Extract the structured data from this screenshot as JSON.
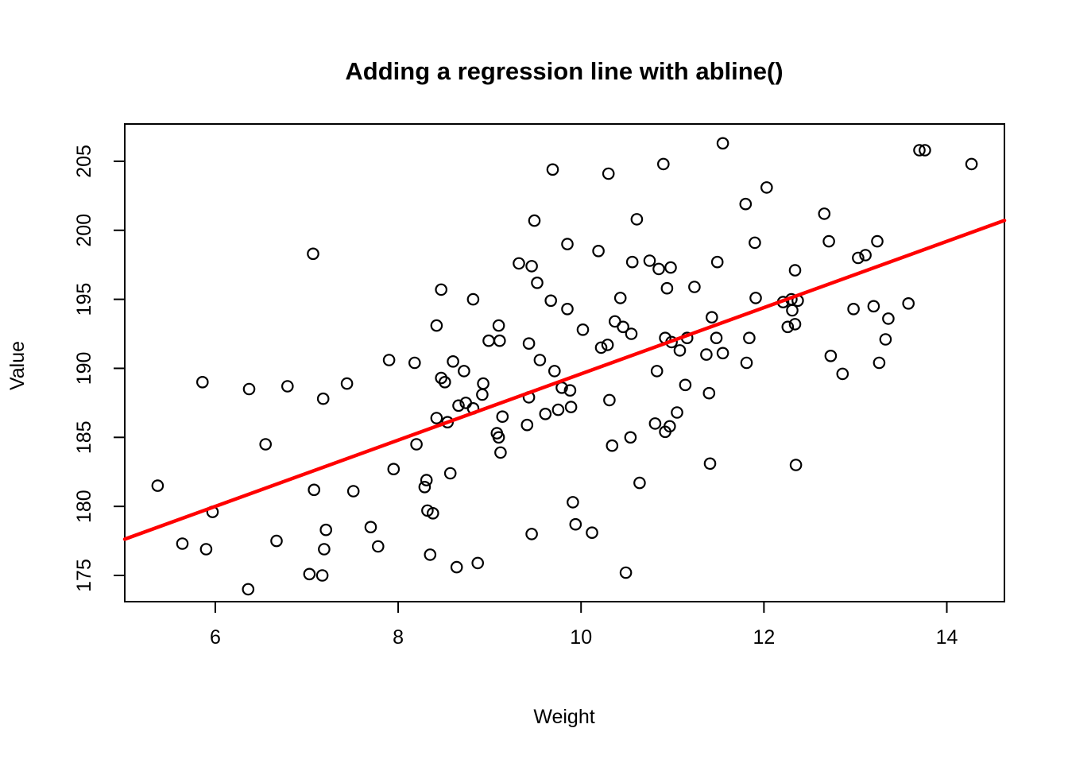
{
  "chart_data": {
    "type": "scatter",
    "title": "Adding a regression line with abline()",
    "xlabel": "Weight",
    "ylabel": "Value",
    "x_ticks": [
      6,
      8,
      10,
      12,
      14
    ],
    "y_ticks": [
      175,
      180,
      185,
      190,
      195,
      200,
      205
    ],
    "xlim": [
      5.01,
      14.63
    ],
    "ylim": [
      173.1,
      207.7
    ],
    "grid": "off",
    "legend": "none",
    "point_color": "#000000",
    "background": "#ffffff",
    "regression_line": {
      "intercept": 165.6,
      "slope": 2.4,
      "color": "#ff0000"
    },
    "points": [
      [
        7.07,
        198.3
      ],
      [
        7.9,
        190.6
      ],
      [
        8.18,
        190.4
      ],
      [
        9.69,
        204.4
      ],
      [
        10.3,
        204.1
      ],
      [
        10.9,
        204.8
      ],
      [
        9.49,
        200.7
      ],
      [
        10.61,
        200.8
      ],
      [
        9.85,
        199.0
      ],
      [
        10.19,
        198.5
      ],
      [
        10.56,
        197.7
      ],
      [
        10.75,
        197.8
      ],
      [
        10.85,
        197.2
      ],
      [
        10.98,
        197.3
      ],
      [
        9.32,
        197.6
      ],
      [
        9.46,
        197.4
      ],
      [
        9.52,
        196.2
      ],
      [
        8.47,
        195.7
      ],
      [
        8.82,
        195.0
      ],
      [
        10.94,
        195.8
      ],
      [
        11.24,
        195.9
      ],
      [
        9.67,
        194.9
      ],
      [
        9.85,
        194.3
      ],
      [
        10.43,
        195.1
      ],
      [
        8.42,
        193.1
      ],
      [
        9.1,
        193.1
      ],
      [
        8.99,
        192.0
      ],
      [
        9.11,
        192.0
      ],
      [
        9.43,
        191.8
      ],
      [
        10.02,
        192.8
      ],
      [
        10.22,
        191.5
      ],
      [
        10.29,
        191.7
      ],
      [
        10.37,
        193.4
      ],
      [
        10.46,
        193.0
      ],
      [
        10.55,
        192.5
      ],
      [
        10.92,
        192.2
      ],
      [
        10.99,
        191.9
      ],
      [
        11.16,
        192.2
      ],
      [
        11.08,
        191.3
      ],
      [
        11.37,
        191.0
      ],
      [
        11.43,
        193.7
      ],
      [
        11.55,
        206.3
      ],
      [
        13.7,
        205.8
      ],
      [
        13.76,
        205.8
      ],
      [
        14.27,
        204.8
      ],
      [
        12.03,
        203.1
      ],
      [
        11.8,
        201.9
      ],
      [
        12.66,
        201.2
      ],
      [
        11.9,
        199.1
      ],
      [
        12.71,
        199.2
      ],
      [
        13.24,
        199.2
      ],
      [
        13.03,
        198.0
      ],
      [
        13.11,
        198.2
      ],
      [
        11.49,
        197.7
      ],
      [
        12.34,
        197.1
      ],
      [
        11.91,
        195.1
      ],
      [
        12.21,
        194.8
      ],
      [
        12.3,
        195.0
      ],
      [
        12.37,
        194.9
      ],
      [
        12.31,
        194.2
      ],
      [
        12.26,
        193.0
      ],
      [
        12.34,
        193.2
      ],
      [
        12.98,
        194.3
      ],
      [
        13.2,
        194.5
      ],
      [
        13.36,
        193.6
      ],
      [
        13.58,
        194.7
      ],
      [
        13.33,
        192.1
      ],
      [
        11.48,
        192.2
      ],
      [
        11.84,
        192.2
      ],
      [
        12.73,
        190.9
      ],
      [
        11.55,
        191.1
      ],
      [
        13.26,
        190.4
      ],
      [
        11.81,
        190.4
      ],
      [
        5.86,
        189.0
      ],
      [
        6.37,
        188.5
      ],
      [
        6.79,
        188.7
      ],
      [
        7.18,
        187.8
      ],
      [
        7.44,
        188.9
      ],
      [
        6.55,
        184.5
      ],
      [
        5.37,
        181.5
      ],
      [
        5.97,
        179.6
      ],
      [
        5.64,
        177.3
      ],
      [
        5.9,
        176.9
      ],
      [
        6.67,
        177.5
      ],
      [
        7.08,
        181.2
      ],
      [
        7.51,
        181.1
      ],
      [
        7.19,
        176.9
      ],
      [
        7.03,
        175.1
      ],
      [
        7.17,
        175.0
      ],
      [
        6.36,
        174.0
      ],
      [
        7.7,
        178.5
      ],
      [
        7.78,
        177.1
      ],
      [
        7.95,
        182.7
      ],
      [
        8.2,
        184.5
      ],
      [
        7.21,
        178.3
      ],
      [
        8.47,
        189.3
      ],
      [
        8.51,
        189.0
      ],
      [
        8.72,
        189.8
      ],
      [
        8.93,
        188.9
      ],
      [
        8.92,
        188.1
      ],
      [
        8.66,
        187.3
      ],
      [
        8.74,
        187.5
      ],
      [
        8.82,
        187.1
      ],
      [
        8.42,
        186.4
      ],
      [
        8.54,
        186.1
      ],
      [
        9.14,
        186.5
      ],
      [
        9.08,
        185.3
      ],
      [
        9.1,
        185.0
      ],
      [
        9.12,
        183.9
      ],
      [
        9.41,
        185.9
      ],
      [
        9.43,
        187.9
      ],
      [
        9.61,
        186.7
      ],
      [
        9.75,
        187.0
      ],
      [
        9.89,
        187.2
      ],
      [
        9.79,
        188.6
      ],
      [
        9.88,
        188.4
      ],
      [
        9.71,
        189.8
      ],
      [
        10.31,
        187.7
      ],
      [
        10.34,
        184.4
      ],
      [
        10.54,
        185.0
      ],
      [
        10.64,
        181.7
      ],
      [
        10.83,
        189.8
      ],
      [
        11.14,
        188.8
      ],
      [
        10.81,
        186.0
      ],
      [
        10.97,
        185.8
      ],
      [
        10.92,
        185.4
      ],
      [
        11.05,
        186.8
      ],
      [
        11.4,
        188.2
      ],
      [
        11.41,
        183.1
      ],
      [
        9.46,
        178.0
      ],
      [
        9.91,
        180.3
      ],
      [
        9.94,
        178.7
      ],
      [
        10.12,
        178.1
      ],
      [
        8.35,
        176.5
      ],
      [
        8.64,
        175.6
      ],
      [
        8.87,
        175.9
      ],
      [
        10.49,
        175.2
      ],
      [
        8.32,
        179.7
      ],
      [
        8.38,
        179.5
      ],
      [
        8.31,
        181.9
      ],
      [
        8.29,
        181.4
      ],
      [
        8.57,
        182.4
      ],
      [
        9.55,
        190.6
      ],
      [
        8.6,
        190.5
      ],
      [
        12.86,
        189.6
      ],
      [
        12.35,
        183.0
      ]
    ]
  }
}
